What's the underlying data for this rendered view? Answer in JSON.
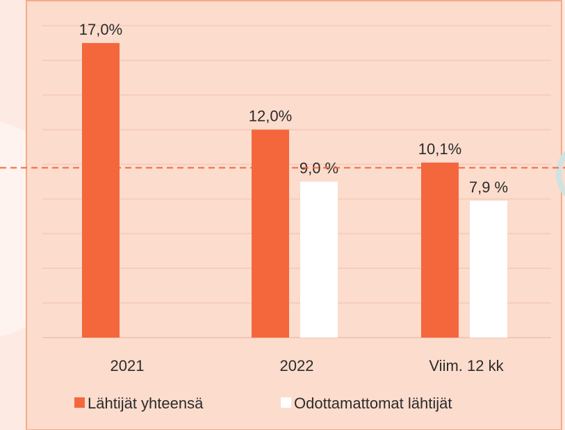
{
  "chart_data": {
    "type": "bar",
    "categories": [
      "2021",
      "2022",
      "Viim. 12 kk"
    ],
    "series": [
      {
        "name": "Lähtijät yhteensä",
        "color": "#f4673d",
        "values": [
          17.0,
          12.0,
          10.1
        ],
        "value_labels": [
          "17,0%",
          "12,0%",
          "10,1%"
        ]
      },
      {
        "name": "Odottamattomat lähtijät",
        "color": "#ffffff",
        "values": [
          null,
          9.0,
          7.9
        ],
        "value_labels": [
          null,
          "9,0 %",
          "7,9 %"
        ]
      }
    ],
    "ylim": [
      0,
      18
    ],
    "yticks": [
      0,
      2,
      4,
      6,
      8,
      10,
      12,
      14,
      16,
      18
    ],
    "grid": true,
    "reference_line": {
      "value": 9.8,
      "color": "#f4673d"
    }
  }
}
